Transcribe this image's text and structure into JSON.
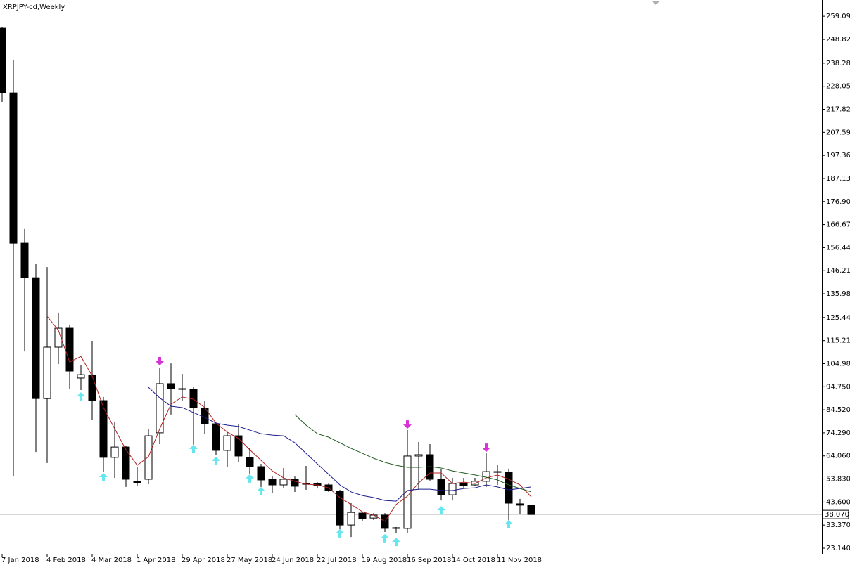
{
  "chart_data": {
    "type": "candlestick",
    "title": "XRPJPY-cd,Weekly",
    "categories": [
      "7 Jan 2018",
      null,
      null,
      null,
      "4 Feb 2018",
      null,
      null,
      null,
      "4 Mar 2018",
      null,
      null,
      null,
      "1 Apr 2018",
      null,
      null,
      null,
      "29 Apr 2018",
      null,
      null,
      null,
      "27 May 2018",
      null,
      null,
      null,
      "24 Jun 2018",
      null,
      null,
      null,
      "22 Jul 2018",
      null,
      null,
      null,
      "19 Aug 2018",
      null,
      null,
      null,
      "16 Sep 2018",
      null,
      null,
      null,
      "14 Oct 2018",
      null,
      null,
      null,
      "11 Nov 2018",
      null,
      null,
      null
    ],
    "open": [
      253.8,
      225.1,
      158.4,
      143.1,
      89.5,
      112.3,
      120.7,
      98.6,
      100.0,
      88.6,
      63.4,
      68.0,
      52.8,
      53.7,
      74.3,
      96.1,
      93.9,
      93.6,
      85.2,
      78.3,
      66.5,
      73.0,
      63.4,
      59.3,
      53.7,
      51.2,
      53.7,
      51.5,
      51.8,
      51.2,
      48.4,
      33.4,
      38.7,
      36.5,
      37.8,
      32.2,
      31.9,
      64.0,
      64.6,
      53.7,
      46.8,
      51.8,
      51.2,
      52.8,
      57.1,
      56.8,
      42.8,
      42.2
    ],
    "high": [
      254.4,
      239.8,
      164.7,
      149.4,
      147.8,
      127.6,
      122.3,
      104.2,
      115.1,
      90.2,
      79.2,
      68.5,
      59.0,
      76.1,
      103.2,
      105.1,
      100.4,
      94.8,
      88.6,
      79.2,
      74.6,
      78.0,
      67.7,
      60.5,
      55.2,
      58.7,
      54.9,
      59.6,
      52.4,
      51.8,
      49.0,
      43.1,
      39.3,
      38.7,
      38.7,
      32.5,
      75.5,
      70.2,
      69.3,
      58.1,
      54.3,
      54.3,
      54.3,
      65.2,
      60.2,
      58.4,
      45.0,
      42.2
    ],
    "low": [
      221.1,
      55.2,
      110.4,
      65.8,
      60.9,
      104.8,
      93.9,
      93.3,
      80.2,
      56.8,
      54.3,
      50.3,
      50.9,
      51.5,
      69.3,
      82.4,
      88.6,
      69.0,
      73.9,
      64.3,
      59.3,
      61.5,
      56.2,
      50.3,
      47.5,
      50.0,
      48.1,
      49.0,
      49.6,
      48.1,
      30.0,
      28.1,
      35.0,
      35.6,
      30.3,
      29.7,
      30.0,
      49.0,
      53.1,
      44.3,
      44.3,
      50.0,
      50.6,
      50.3,
      51.2,
      35.3,
      38.4,
      38.07
    ],
    "close": [
      225.1,
      158.4,
      143.1,
      89.5,
      112.3,
      120.7,
      101.7,
      100.1,
      88.6,
      63.4,
      68.0,
      53.7,
      52.1,
      73.0,
      96.1,
      93.9,
      93.6,
      85.5,
      78.3,
      66.5,
      73.0,
      64.0,
      59.3,
      53.4,
      51.2,
      53.7,
      50.6,
      51.8,
      50.9,
      48.7,
      33.4,
      39.0,
      36.2,
      37.8,
      31.9,
      31.9,
      64.0,
      64.6,
      53.7,
      46.8,
      51.8,
      50.9,
      52.8,
      57.1,
      56.8,
      43.1,
      42.2,
      38.07
    ],
    "up_color": "#ffffff",
    "down_color": "#000000",
    "series": [
      {
        "color": "#b22222",
        "values": [
          null,
          null,
          null,
          null,
          126.0,
          119.8,
          105.7,
          108.2,
          99.5,
          85.5,
          76.1,
          66.8,
          59.9,
          63.7,
          76.1,
          87.0,
          90.2,
          89.2,
          85.5,
          78.6,
          74.6,
          71.8,
          66.8,
          62.1,
          57.4,
          54.3,
          52.8,
          51.5,
          51.2,
          49.9,
          45.6,
          42.5,
          39.3,
          37.8,
          35.0,
          42.5,
          46.2,
          52.1,
          56.5,
          56.5,
          51.8,
          52.4,
          51.8,
          54.3,
          55.6,
          53.7,
          51.2,
          45.9
        ]
      },
      {
        "color": "#1c1c8c",
        "values": [
          null,
          null,
          null,
          null,
          null,
          null,
          null,
          null,
          null,
          null,
          null,
          null,
          null,
          94.5,
          89.8,
          86.1,
          85.5,
          83.3,
          81.1,
          78.6,
          77.7,
          77.1,
          75.5,
          73.9,
          73.3,
          73.0,
          69.9,
          65.2,
          60.5,
          55.9,
          51.2,
          48.1,
          46.5,
          45.6,
          44.3,
          44.0,
          48.7,
          49.3,
          49.3,
          48.7,
          48.7,
          49.6,
          49.9,
          51.2,
          50.3,
          49.0,
          49.6,
          50.3
        ]
      },
      {
        "color": "#1e5a1e",
        "values": [
          null,
          null,
          null,
          null,
          null,
          null,
          null,
          null,
          null,
          null,
          null,
          null,
          null,
          null,
          null,
          null,
          null,
          null,
          null,
          null,
          null,
          null,
          null,
          null,
          null,
          null,
          82.4,
          77.7,
          73.9,
          72.4,
          69.9,
          67.4,
          65.2,
          63.0,
          61.2,
          59.9,
          59.0,
          59.0,
          59.3,
          58.7,
          57.4,
          56.5,
          55.6,
          54.6,
          53.4,
          51.2,
          49.6,
          48.1
        ]
      }
    ],
    "up_arrows": {
      "color": "#66e6ee",
      "x": [
        7,
        9,
        17,
        19,
        22,
        23,
        30,
        34,
        35,
        39,
        45
      ],
      "values": [
        92.3,
        56.5,
        69.0,
        63.7,
        55.9,
        50.3,
        31.6,
        29.4,
        27.8,
        41.8,
        35.6
      ]
    },
    "down_arrows": {
      "color": "#d633d6",
      "x": [
        14,
        36,
        43
      ],
      "values": [
        104.2,
        76.1,
        65.8
      ]
    },
    "current_price": {
      "value": 38.07,
      "label": "38.070"
    },
    "ylim": [
      20.65,
      266.3
    ],
    "yticks": [
      {
        "value": 259.09,
        "label": "259.090"
      },
      {
        "value": 248.82,
        "label": "248.820"
      },
      {
        "value": 238.28,
        "label": "238.280"
      },
      {
        "value": 228.05,
        "label": "228.050"
      },
      {
        "value": 217.82,
        "label": "217.820"
      },
      {
        "value": 207.59,
        "label": "207.590"
      },
      {
        "value": 197.36,
        "label": "197.360"
      },
      {
        "value": 187.13,
        "label": "187.130"
      },
      {
        "value": 176.9,
        "label": "176.900"
      },
      {
        "value": 166.67,
        "label": "166.670"
      },
      {
        "value": 156.44,
        "label": "156.440"
      },
      {
        "value": 146.21,
        "label": "146.210"
      },
      {
        "value": 135.98,
        "label": "135.980"
      },
      {
        "value": 125.44,
        "label": "125.440"
      },
      {
        "value": 115.21,
        "label": "115.210"
      },
      {
        "value": 104.98,
        "label": "104.980"
      },
      {
        "value": 94.75,
        "label": "94.750"
      },
      {
        "value": 84.52,
        "label": "84.520"
      },
      {
        "value": 74.29,
        "label": "74.290"
      },
      {
        "value": 64.06,
        "label": "64.060"
      },
      {
        "value": 53.83,
        "label": "53.830"
      },
      {
        "value": 43.6,
        "label": "43.600"
      },
      {
        "value": 33.37,
        "label": "33.370"
      },
      {
        "value": 23.14,
        "label": "23.140"
      }
    ]
  }
}
